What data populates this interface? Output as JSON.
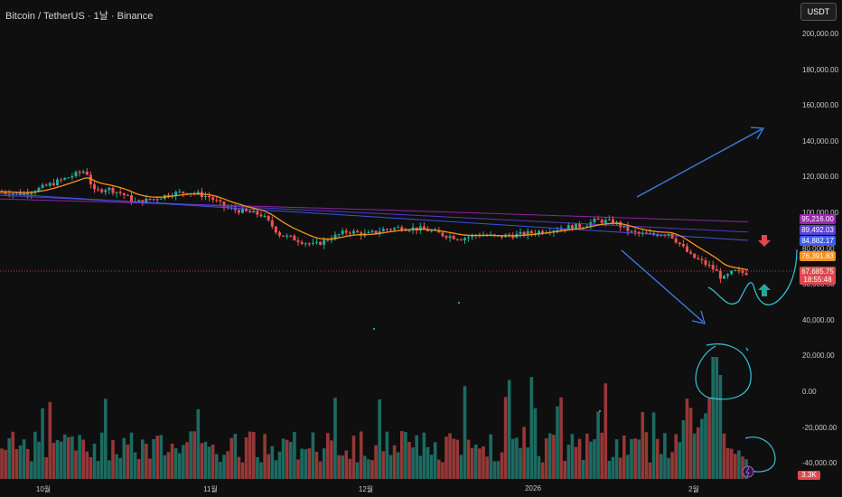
{
  "header": {
    "title": "Bitcoin / TetherUS · 1날 · Binance",
    "currency": "USDT"
  },
  "price_axis": {
    "ticks": [
      "200,000.00",
      "180,000.00",
      "160,000.00",
      "140,000.00",
      "120,000.00",
      "100,000.00",
      "80,000.00",
      "60,000.00",
      "40,000.00",
      "20,000.00",
      "0.00",
      "-20,000.00",
      "-40,000.00"
    ]
  },
  "time_axis": {
    "ticks": [
      "10월",
      "11월",
      "12월",
      "2026",
      "2월"
    ]
  },
  "price_tags": [
    {
      "label": "95,216.00",
      "color": "#9c27b0"
    },
    {
      "label": "89,492.03",
      "color": "#5b3fd6"
    },
    {
      "label": "84,882.17",
      "color": "#3f5bf2"
    },
    {
      "label": "76,391.83",
      "color": "#f7931a"
    },
    {
      "label": "67,685.75",
      "color": "#e0484f"
    },
    {
      "label": "18:55:48",
      "color": "#e0484f"
    }
  ],
  "volume_tag": "3.3K",
  "colors": {
    "up": "#26a69a",
    "down": "#ef5350",
    "ma_fast": "#f7931a",
    "annotation": "#3f7ee8",
    "cyan": "#35c4d6"
  },
  "chart_data": {
    "type": "candlestick",
    "title": "Bitcoin / TetherUS · 1날 · Binance",
    "ylim": [
      -50000,
      210000
    ],
    "grid": false,
    "timeline": [
      {
        "period": "Sep 2025 (end)",
        "price_approx": 112000
      },
      {
        "period": "Oct 2025 (early)",
        "price_approx": 124000
      },
      {
        "period": "Oct 2025 (mid)",
        "price_approx": 108000
      },
      {
        "period": "Nov 2025 (start)",
        "price_approx": 110000
      },
      {
        "period": "Nov 2025 (late)",
        "price_approx": 84000
      },
      {
        "period": "Dec 2025",
        "price_approx": 88000
      },
      {
        "period": "Jan 2026 (mid)",
        "price_approx": 96000
      },
      {
        "period": "Feb 2026 (start)",
        "price_approx": 76000
      },
      {
        "period": "Feb 2026 (now)",
        "price_approx": 67685.75
      }
    ],
    "moving_averages": [
      {
        "value": 95216.0
      },
      {
        "value": 89492.03
      },
      {
        "value": 84882.17
      },
      {
        "value": 76391.83
      }
    ],
    "last_price": 67685.75,
    "countdown": "18:55:48",
    "last_volume": "3.3K"
  }
}
